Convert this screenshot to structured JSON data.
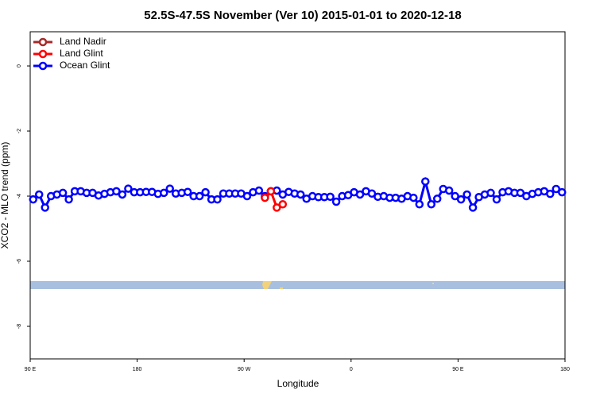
{
  "chart_data": {
    "type": "line",
    "title": "52.5S-47.5S November (Ver 10)   2015-01-01 to 2020-12-18",
    "x_label": "Longitude",
    "y_label": "XCO2 - MLO trend (ppm)",
    "xlim": [
      90,
      540
    ],
    "xticks": [
      {
        "value": 90,
        "label": "90 E"
      },
      180,
      {
        "value": 270,
        "label": "90 W"
      },
      {
        "value": 360,
        "label": "0"
      },
      {
        "value": 450,
        "label": "90 E"
      },
      {
        "value": 540,
        "label": "180"
      }
    ],
    "ylim": [
      -9,
      1.05
    ],
    "yticks": [
      0,
      -2,
      -4,
      -6,
      -8
    ],
    "grid": false,
    "legend": "top-left",
    "series": [
      {
        "name": "Land Nadir",
        "color": "#a52a2a",
        "x": [
          287.5
        ],
        "values": [
          -4.03
        ]
      },
      {
        "name": "Land Glint",
        "color": "#ff0000",
        "x": [
          287.5,
          292.5,
          297.5,
          302.5
        ],
        "values": [
          -4.05,
          -3.85,
          -4.35,
          -4.25
        ]
      },
      {
        "name": "Ocean Glint",
        "color": "#0000ff",
        "x": [
          92.5,
          97.5,
          102.5,
          107.5,
          112.5,
          117.5,
          122.5,
          127.5,
          132.5,
          137.5,
          142.5,
          147.5,
          152.5,
          157.5,
          162.5,
          167.5,
          172.5,
          177.5,
          182.5,
          187.5,
          192.5,
          197.5,
          202.5,
          207.5,
          212.5,
          217.5,
          222.5,
          227.5,
          232.5,
          237.5,
          242.5,
          247.5,
          252.5,
          257.5,
          262.5,
          267.5,
          272.5,
          277.5,
          282.5,
          287.5,
          292.5,
          297.5,
          302.5,
          307.5,
          312.5,
          317.5,
          322.5,
          327.5,
          332.5,
          337.5,
          342.5,
          347.5,
          352.5,
          357.5,
          362.5,
          367.5,
          372.5,
          377.5,
          382.5,
          387.5,
          392.5,
          397.5,
          402.5,
          407.5,
          412.5,
          417.5,
          422.5,
          427.5,
          432.5,
          437.5,
          442.5,
          447.5,
          452.5,
          457.5,
          462.5,
          467.5,
          472.5,
          477.5,
          482.5,
          487.5,
          492.5,
          497.5,
          502.5,
          507.5,
          512.5,
          517.5,
          522.5,
          527.5,
          532.5,
          537.5
        ],
        "values": [
          -4.1,
          -3.95,
          -4.35,
          -4.0,
          -3.95,
          -3.9,
          -4.1,
          -3.85,
          -3.85,
          -3.9,
          -3.9,
          -3.98,
          -3.93,
          -3.88,
          -3.85,
          -3.95,
          -3.77,
          -3.88,
          -3.88,
          -3.87,
          -3.87,
          -3.93,
          -3.9,
          -3.77,
          -3.92,
          -3.9,
          -3.87,
          -4.0,
          -4.0,
          -3.88,
          -4.1,
          -4.1,
          -3.92,
          -3.92,
          -3.92,
          -3.92,
          -4.0,
          -3.88,
          -3.83,
          -4.0,
          -3.85,
          -3.83,
          -3.95,
          -3.87,
          -3.92,
          -3.95,
          -4.08,
          -4.0,
          -4.03,
          -4.03,
          -4.02,
          -4.17,
          -4.0,
          -3.97,
          -3.88,
          -3.95,
          -3.85,
          -3.92,
          -4.02,
          -4.0,
          -4.05,
          -4.05,
          -4.08,
          -4.0,
          -4.05,
          -4.25,
          -3.55,
          -4.25,
          -4.08,
          -3.78,
          -3.83,
          -4.0,
          -4.1,
          -3.95,
          -4.35,
          -4.03,
          -3.95,
          -3.9,
          -4.1,
          -3.88,
          -3.85,
          -3.9,
          -3.9,
          -4.0,
          -3.93,
          -3.88,
          -3.85,
          -3.93,
          -3.78,
          -3.88
        ]
      }
    ]
  }
}
